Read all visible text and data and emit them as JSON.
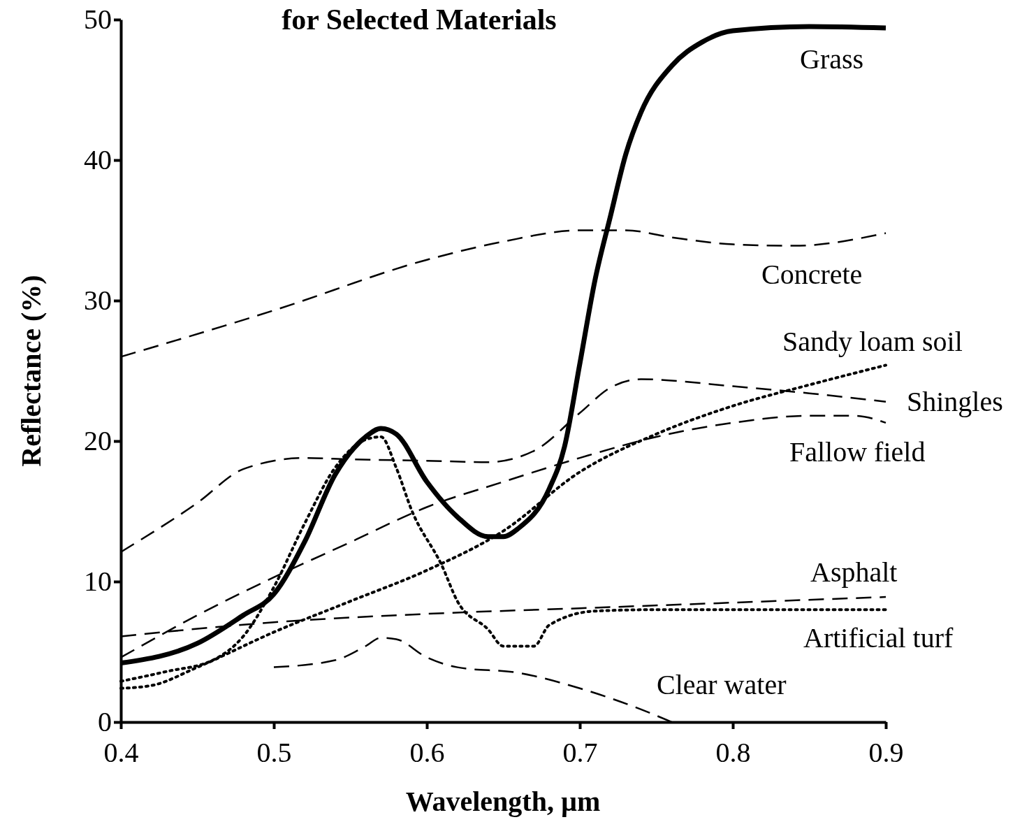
{
  "chart_data": {
    "type": "line",
    "title": "for Selected Materials",
    "xlabel": "Wavelength, µm",
    "ylabel": "Reflectance (%)",
    "xlim": [
      0.4,
      0.9
    ],
    "xticks": [
      0.4,
      0.5,
      0.6,
      0.7,
      0.8,
      0.9
    ],
    "ylim": [
      0,
      50
    ],
    "yticks": [
      0,
      10,
      20,
      30,
      40,
      50
    ],
    "grid": false,
    "series": [
      {
        "name": "Grass",
        "color": "#000000",
        "line_style": "solid",
        "x": [
          0.4,
          0.45,
          0.48,
          0.5,
          0.52,
          0.54,
          0.56,
          0.57,
          0.58,
          0.6,
          0.62,
          0.64,
          0.65,
          0.66,
          0.68,
          0.69,
          0.7,
          0.71,
          0.72,
          0.73,
          0.74,
          0.76,
          0.78,
          0.8,
          0.85,
          0.9
        ],
        "values": [
          4.2,
          5.6,
          7.6,
          9.1,
          12.8,
          17.6,
          20.3,
          20.9,
          20.5,
          17.1,
          14.6,
          13.2,
          13.2,
          13.8,
          16.6,
          19.6,
          25.5,
          31.5,
          36,
          40.4,
          43.4,
          46.7,
          48.4,
          49.2,
          49.5,
          49.4
        ]
      },
      {
        "name": "Concrete",
        "color": "#000000",
        "line_style": "dashed",
        "x": [
          0.4,
          0.5,
          0.6,
          0.65,
          0.7,
          0.73,
          0.76,
          0.8,
          0.84,
          0.9
        ],
        "values": [
          26,
          29.3,
          32.9,
          34.2,
          35,
          35,
          34.5,
          34,
          33.9,
          34.8
        ]
      },
      {
        "name": "Sandy loam soil",
        "color": "#000000",
        "line_style": "dotted",
        "x": [
          0.4,
          0.42,
          0.45,
          0.5,
          0.55,
          0.6,
          0.65,
          0.7,
          0.75,
          0.8,
          0.85,
          0.9
        ],
        "values": [
          2.4,
          2.6,
          3.9,
          6.4,
          8.6,
          10.8,
          13.6,
          17.8,
          20.5,
          22.5,
          24,
          25.4
        ]
      },
      {
        "name": "Shingles",
        "color": "#000000",
        "line_style": "dashed",
        "x": [
          0.4,
          0.45,
          0.48,
          0.52,
          0.55,
          0.6,
          0.64,
          0.67,
          0.7,
          0.72,
          0.74,
          0.8,
          0.85,
          0.9
        ],
        "values": [
          12.1,
          15.6,
          18,
          18.8,
          18.7,
          18.6,
          18.5,
          19.3,
          22,
          23.8,
          24.4,
          23.9,
          23.4,
          22.8
        ]
      },
      {
        "name": "Fallow field",
        "color": "#000000",
        "line_style": "dashed",
        "x": [
          0.4,
          0.45,
          0.5,
          0.55,
          0.6,
          0.65,
          0.7,
          0.75,
          0.8,
          0.85,
          0.88,
          0.9
        ],
        "values": [
          4.6,
          7.6,
          10.3,
          12.8,
          15.3,
          17.1,
          18.8,
          20.3,
          21.3,
          21.8,
          21.8,
          21.3
        ]
      },
      {
        "name": "Asphalt",
        "color": "#000000",
        "line_style": "dashed",
        "x": [
          0.4,
          0.5,
          0.6,
          0.7,
          0.8,
          0.9
        ],
        "values": [
          6.1,
          7.1,
          7.7,
          8.1,
          8.5,
          8.9
        ]
      },
      {
        "name": "Artificial turf",
        "color": "#000000",
        "line_style": "dotted",
        "x": [
          0.4,
          0.43,
          0.46,
          0.48,
          0.5,
          0.52,
          0.54,
          0.56,
          0.57,
          0.58,
          0.59,
          0.61,
          0.62,
          0.64,
          0.65,
          0.67,
          0.68,
          0.71,
          0.75,
          0.9
        ],
        "values": [
          2.9,
          3.6,
          4.4,
          6.1,
          9.6,
          14.1,
          18.1,
          20.1,
          20.3,
          18.1,
          15.1,
          11.1,
          8.6,
          6.6,
          5.4,
          5.4,
          6.9,
          7.9,
          8,
          8
        ]
      },
      {
        "name": "Clear water",
        "color": "#000000",
        "line_style": "dashed",
        "x": [
          0.5,
          0.54,
          0.56,
          0.57,
          0.58,
          0.6,
          0.62,
          0.66,
          0.7,
          0.74,
          0.76
        ],
        "values": [
          3.9,
          4.4,
          5.4,
          6,
          5.9,
          4.6,
          3.9,
          3.5,
          2.4,
          0.9,
          0
        ]
      }
    ]
  }
}
